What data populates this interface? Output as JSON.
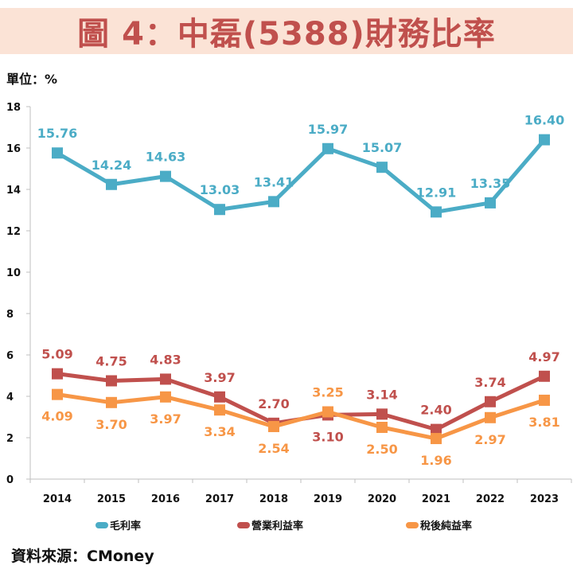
{
  "header": {
    "title": "圖 4：中磊(5388)財務比率",
    "unit": "單位：%"
  },
  "footer": {
    "source": "資料來源：CMoney"
  },
  "chart_data": {
    "type": "line",
    "title": "圖 4：中磊(5388)財務比率",
    "xlabel": "",
    "ylabel": "單位：%",
    "categories": [
      "2014",
      "2015",
      "2016",
      "2017",
      "2018",
      "2019",
      "2020",
      "2021",
      "2022",
      "2023"
    ],
    "ylim": [
      0,
      18
    ],
    "yticks": [
      0,
      2,
      4,
      6,
      8,
      10,
      12,
      14,
      16,
      18
    ],
    "grid": false,
    "legend_position": "bottom",
    "marker": "square",
    "series": [
      {
        "name": "毛利率",
        "color": "#4bacc6",
        "values": [
          15.76,
          14.24,
          14.63,
          13.03,
          13.41,
          15.97,
          15.07,
          12.91,
          13.35,
          16.4
        ],
        "labels": [
          "15.76",
          "14.24",
          "14.63",
          "13.03",
          "13.41",
          "15.97",
          "15.07",
          "12.91",
          "13.35",
          "16.40"
        ],
        "label_positions": [
          "above",
          "above",
          "above",
          "above",
          "above",
          "above",
          "above",
          "above",
          "above",
          "above"
        ]
      },
      {
        "name": "營業利益率",
        "color": "#c0504d",
        "values": [
          5.09,
          4.75,
          4.83,
          3.97,
          2.7,
          3.1,
          3.14,
          2.4,
          3.74,
          4.97
        ],
        "labels": [
          "5.09",
          "4.75",
          "4.83",
          "3.97",
          "2.70",
          "3.10",
          "3.14",
          "2.40",
          "3.74",
          "4.97"
        ],
        "label_positions": [
          "above",
          "above",
          "above",
          "above",
          "above",
          "below",
          "above",
          "above",
          "above",
          "above"
        ]
      },
      {
        "name": "稅後純益率",
        "color": "#f79646",
        "values": [
          4.09,
          3.7,
          3.97,
          3.34,
          2.54,
          3.25,
          2.5,
          1.96,
          2.97,
          3.81
        ],
        "labels": [
          "4.09",
          "3.70",
          "3.97",
          "3.34",
          "2.54",
          "3.25",
          "2.50",
          "1.96",
          "2.97",
          "3.81"
        ],
        "label_positions": [
          "below",
          "below",
          "below",
          "below",
          "below",
          "above",
          "below",
          "below",
          "below",
          "below"
        ]
      }
    ]
  },
  "colors": {
    "title_band": "#fbe3d6",
    "title_text": "#c0504d",
    "axis": "#bfbfbf"
  }
}
